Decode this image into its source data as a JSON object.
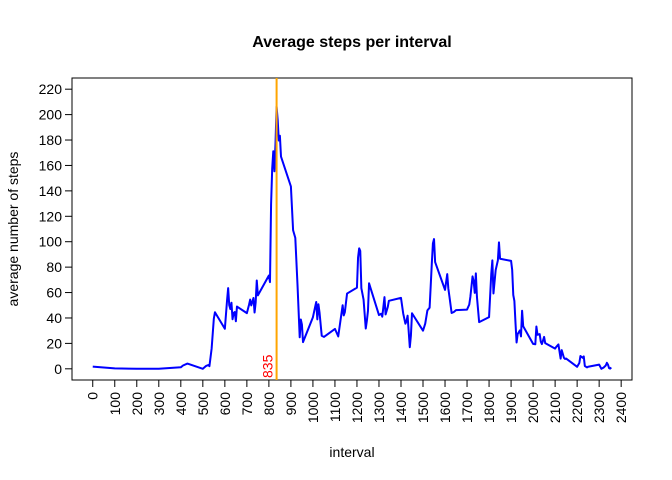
{
  "chart_data": {
    "type": "line",
    "title": "Average steps per interval",
    "xlabel": "interval",
    "ylabel": "average number of steps",
    "xlim": [
      -94.2,
      2449.2
    ],
    "ylim": [
      -8.8,
      228.8
    ],
    "xticks": [
      0,
      100,
      200,
      300,
      400,
      500,
      600,
      700,
      800,
      900,
      1000,
      1100,
      1200,
      1300,
      1400,
      1500,
      1600,
      1700,
      1800,
      1900,
      2000,
      2100,
      2200,
      2300,
      2400
    ],
    "yticks": [
      0,
      20,
      40,
      60,
      80,
      100,
      120,
      140,
      160,
      180,
      200,
      220
    ],
    "vline": {
      "value": 835,
      "color": "#FFA500",
      "label_color": "#FF0000"
    },
    "series": [
      {
        "color": "#0000FF",
        "x": [
          0,
          100,
          200,
          300,
          400,
          410,
          430,
          500,
          515,
          525,
          530,
          540,
          550,
          555,
          600,
          610,
          615,
          620,
          625,
          630,
          635,
          640,
          645,
          650,
          655,
          700,
          710,
          715,
          720,
          730,
          735,
          740,
          745,
          750,
          800,
          805,
          810,
          815,
          820,
          825,
          830,
          835,
          840,
          845,
          850,
          855,
          900,
          910,
          920,
          930,
          940,
          945,
          950,
          955,
          1000,
          1015,
          1020,
          1025,
          1030,
          1040,
          1050,
          1100,
          1115,
          1135,
          1140,
          1145,
          1155,
          1200,
          1205,
          1210,
          1215,
          1220,
          1230,
          1240,
          1245,
          1250,
          1255,
          1300,
          1310,
          1315,
          1325,
          1330,
          1340,
          1345,
          1400,
          1410,
          1420,
          1425,
          1430,
          1440,
          1445,
          1450,
          1500,
          1510,
          1520,
          1530,
          1535,
          1540,
          1545,
          1550,
          1555,
          1600,
          1610,
          1615,
          1620,
          1630,
          1640,
          1650,
          1700,
          1710,
          1715,
          1725,
          1730,
          1735,
          1740,
          1745,
          1755,
          1800,
          1810,
          1815,
          1820,
          1830,
          1840,
          1845,
          1850,
          1900,
          1905,
          1910,
          1915,
          1920,
          1925,
          1930,
          1940,
          1945,
          1950,
          1955,
          2000,
          2010,
          2015,
          2020,
          2030,
          2035,
          2040,
          2050,
          2055,
          2100,
          2105,
          2115,
          2125,
          2130,
          2140,
          2145,
          2150,
          2200,
          2210,
          2215,
          2225,
          2230,
          2235,
          2245,
          2250,
          2300,
          2310,
          2320,
          2330,
          2335,
          2340,
          2345,
          2350,
          2355
        ],
        "values": [
          1.7,
          0.3,
          0,
          0,
          1.2,
          2.6,
          4.1,
          0,
          2.3,
          3,
          2.1,
          16,
          39.5,
          44.5,
          31.5,
          53.8,
          63.5,
          50,
          47,
          52,
          39,
          44,
          44.7,
          37.4,
          49,
          43.8,
          50.5,
          54.5,
          49.9,
          55.7,
          44.3,
          52.3,
          69.5,
          57.8,
          73.4,
          68.2,
          129.4,
          157.5,
          171.2,
          155.4,
          177.3,
          206.2,
          195.9,
          179.6,
          183.4,
          167,
          143.5,
          109,
          103,
          66,
          24.8,
          38.8,
          34.9,
          21,
          40.6,
          52.6,
          38.9,
          50.8,
          44.3,
          26,
          25.1,
          31.4,
          25.5,
          50,
          42,
          44.6,
          59.2,
          63.9,
          87.5,
          94.8,
          92.8,
          63.4,
          54.5,
          31.7,
          37.8,
          45.6,
          67.3,
          42.3,
          43.3,
          41,
          56.4,
          42.8,
          48.7,
          53.5,
          55.8,
          43.6,
          35.5,
          37.5,
          41.8,
          17,
          26.1,
          43.7,
          30,
          35.5,
          46,
          48.1,
          65.3,
          82.9,
          98.7,
          102.1,
          84,
          62.1,
          74.5,
          63.2,
          56.9,
          43.9,
          44.7,
          46.2,
          46.6,
          50.5,
          56.5,
          72.7,
          68.9,
          59.7,
          75.1,
          56.5,
          36.7,
          40.7,
          74.7,
          85.3,
          59.3,
          77.7,
          85.3,
          99.5,
          86.6,
          84.9,
          77.8,
          58,
          53.4,
          36.3,
          20.7,
          27.4,
          30.2,
          25.5,
          45.7,
          33.5,
          19.6,
          19.3,
          33.3,
          26.8,
          27.3,
          21.3,
          19.5,
          25.1,
          20.2,
          15.9,
          17.2,
          19.2,
          8,
          14.7,
          8.7,
          7.8,
          8.1,
          1.6,
          4.6,
          10.1,
          8.7,
          9.75,
          2.2,
          1.1,
          1.6,
          3.3,
          0,
          0.96,
          2.6,
          4.7,
          3.3,
          0.6,
          0.2,
          1.1
        ]
      }
    ]
  }
}
